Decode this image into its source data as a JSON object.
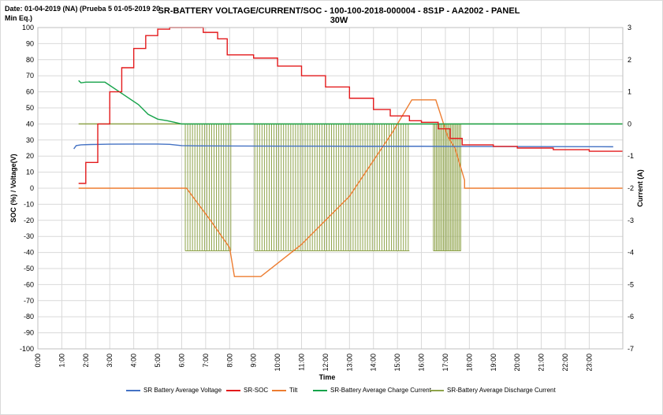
{
  "header": {
    "date_note": "Date: 01-04-2019 (NA) (Prueba 5 01-05-2019 20 Min Eq.)"
  },
  "chart_data": {
    "type": "line",
    "title": "SR-BATTERY VOLTAGE/CURRENT/SOC - 100-100-2018-000004 - 8S1P - AA2002 - PANEL 30W",
    "xlabel": "Time",
    "ylabel": "SOC (%) / Voltage(V)",
    "y2label": "Current (A)",
    "x_ticks": [
      "0:00",
      "1:00",
      "2:00",
      "3:00",
      "4:00",
      "5:00",
      "6:00",
      "7:00",
      "8:00",
      "9:00",
      "10:00",
      "11:00",
      "12:00",
      "13:00",
      "14:00",
      "15:00",
      "16:00",
      "17:00",
      "18:00",
      "19:00",
      "20:00",
      "21:00",
      "22:00",
      "23:00"
    ],
    "xlim": [
      0,
      24.4
    ],
    "ylim": [
      -100,
      100
    ],
    "y_ticks": [
      100,
      90,
      80,
      70,
      60,
      50,
      40,
      30,
      20,
      10,
      0,
      -10,
      -20,
      -30,
      -40,
      -50,
      -60,
      -70,
      -80,
      -90,
      -100
    ],
    "y2lim": [
      -7,
      3
    ],
    "y2_ticks": [
      3,
      2,
      1,
      0,
      -1,
      -2,
      -3,
      -4,
      -5,
      -6,
      -7
    ],
    "grid": true,
    "legend_position": "bottom",
    "series": [
      {
        "name": "SR Battery Average Voltage",
        "axis": "left",
        "color": "#4472c4",
        "x": [
          1.5,
          1.6,
          1.8,
          2.2,
          3,
          4,
          5,
          5.5,
          6.0,
          7,
          10,
          14,
          16,
          17.5,
          24
        ],
        "y": [
          24.5,
          26.5,
          27,
          27.2,
          27.4,
          27.5,
          27.5,
          27.3,
          26.5,
          26.3,
          26.2,
          26.1,
          26.1,
          26.0,
          25.8
        ]
      },
      {
        "name": "SR-SOC",
        "axis": "left",
        "color": "#e31a1c",
        "x": [
          1.7,
          2,
          2.5,
          3,
          3.5,
          4,
          4.5,
          5,
          5.5,
          6.3,
          6.9,
          7.5,
          7.9,
          8.3,
          9,
          10,
          11,
          12,
          13,
          14,
          14.7,
          15.5,
          16,
          16.3,
          16.7,
          17.2,
          17.7,
          19,
          20,
          21.5,
          23,
          24.4
        ],
        "y": [
          3,
          16,
          40,
          60,
          75,
          87,
          95,
          99,
          100,
          100,
          97,
          93,
          83,
          83,
          81,
          76,
          70,
          63,
          56,
          49,
          45,
          42,
          41,
          41,
          37,
          31,
          27,
          26,
          25,
          24,
          23,
          23
        ],
        "step": true
      },
      {
        "name": "Tilt",
        "axis": "left",
        "color": "#ed7d31",
        "x": [
          1.7,
          6.2,
          7.2,
          8.0,
          8.2,
          9.3,
          11,
          13,
          14.8,
          15.6,
          16.6,
          17.1,
          17.4,
          17.8,
          17.8,
          24.4
        ],
        "y": [
          0,
          0,
          -20,
          -37,
          -55,
          -55,
          -35,
          -5,
          35,
          55,
          55,
          32,
          25,
          5,
          0,
          0
        ]
      },
      {
        "name": "SR-Battery Average Charge Current",
        "axis": "right",
        "color": "#16a34a",
        "x": [
          1.7,
          1.8,
          2.0,
          2.8,
          3.4,
          4.2,
          4.6,
          5.0,
          5.4,
          5.7,
          6.0,
          7.5,
          10,
          14,
          16.2,
          17,
          24.4
        ],
        "y": [
          1.35,
          1.28,
          1.3,
          1.3,
          1.0,
          0.6,
          0.3,
          0.15,
          0.1,
          0.05,
          0.0,
          0.0,
          0.0,
          0.0,
          0.0,
          0.0,
          0.0
        ]
      },
      {
        "name": "SR-Battery Average Discharge Current",
        "axis": "right",
        "color": "#8ea34a",
        "bursts": [
          {
            "start": 6.15,
            "end": 8.05,
            "spacing": 0.1
          },
          {
            "start": 9.05,
            "end": 15.5,
            "spacing": 0.1
          },
          {
            "start": 16.5,
            "end": 17.65,
            "spacing": 0.06
          }
        ],
        "baseline": 0,
        "low": -3.95
      }
    ]
  }
}
